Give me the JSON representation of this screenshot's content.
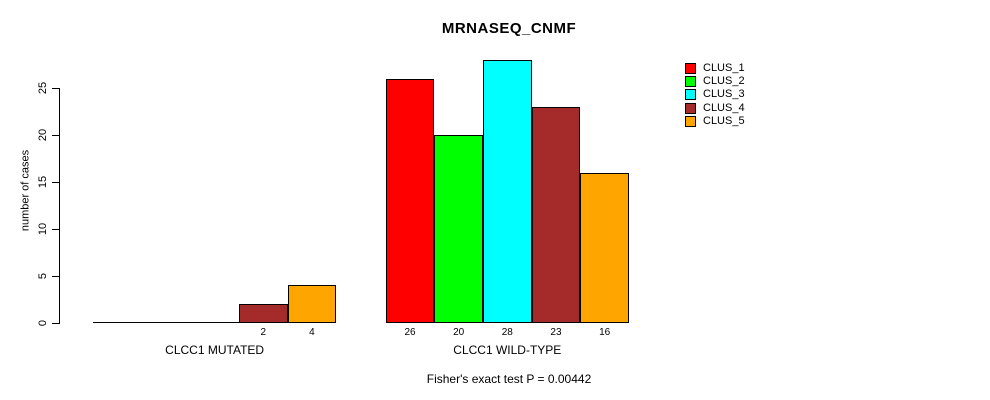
{
  "chart_data": {
    "type": "bar",
    "title": "MRNASEQ_CNMF",
    "ylabel": "number of cases",
    "xlabel": "",
    "ylim": [
      0,
      28
    ],
    "yticks": [
      0,
      5,
      10,
      15,
      20,
      25
    ],
    "grid": false,
    "legend_position": "right",
    "legend": [
      {
        "label": "CLUS_1",
        "color": "#FF0000"
      },
      {
        "label": "CLUS_2",
        "color": "#00FF00"
      },
      {
        "label": "CLUS_3",
        "color": "#00FFFF"
      },
      {
        "label": "CLUS_4",
        "color": "#A52A2A"
      },
      {
        "label": "CLUS_5",
        "color": "#FFA500"
      }
    ],
    "series_names": [
      "CLUS_1",
      "CLUS_2",
      "CLUS_3",
      "CLUS_4",
      "CLUS_5"
    ],
    "groups": [
      {
        "label": "CLCC1 MUTATED",
        "values": [
          0,
          0,
          0,
          2,
          4
        ]
      },
      {
        "label": "CLCC1 WILD-TYPE",
        "values": [
          26,
          20,
          28,
          23,
          16
        ]
      }
    ],
    "bar_value_labels_shown": [
      "2",
      "4",
      "26",
      "20",
      "28",
      "23",
      "16"
    ],
    "annotation": "Fisher's exact test P = 0.00442",
    "axis_color": "#000000",
    "background_color": "#FFFFFF"
  }
}
